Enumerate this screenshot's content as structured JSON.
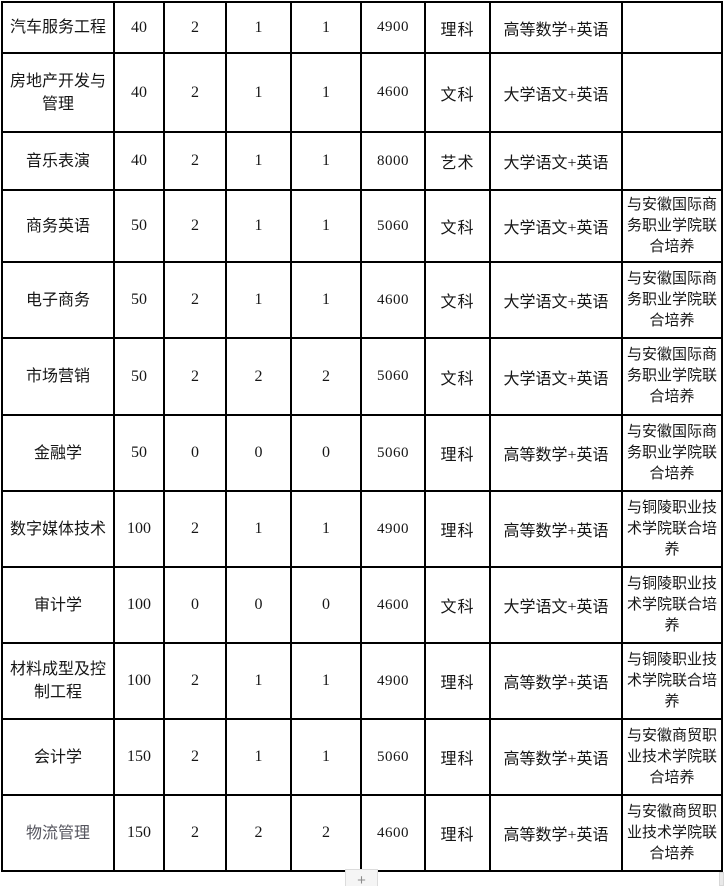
{
  "table": {
    "rows": [
      {
        "major": "汽车服务工程",
        "plan": "40",
        "n1": "2",
        "n2": "1",
        "n3": "1",
        "fee": "4900",
        "category": "理科",
        "subjects": "高等数学+英语",
        "note": ""
      },
      {
        "major": "房地产开发与管理",
        "plan": "40",
        "n1": "2",
        "n2": "1",
        "n3": "1",
        "fee": "4600",
        "category": "文科",
        "subjects": "大学语文+英语",
        "note": ""
      },
      {
        "major": "音乐表演",
        "plan": "40",
        "n1": "2",
        "n2": "1",
        "n3": "1",
        "fee": "8000",
        "category": "艺术",
        "subjects": "大学语文+英语",
        "note": ""
      },
      {
        "major": "商务英语",
        "plan": "50",
        "n1": "2",
        "n2": "1",
        "n3": "1",
        "fee": "5060",
        "category": "文科",
        "subjects": "大学语文+英语",
        "note": "与安徽国际商务职业学院联合培养"
      },
      {
        "major": "电子商务",
        "plan": "50",
        "n1": "2",
        "n2": "1",
        "n3": "1",
        "fee": "4600",
        "category": "文科",
        "subjects": "大学语文+英语",
        "note": "与安徽国际商务职业学院联合培养"
      },
      {
        "major": "市场营销",
        "plan": "50",
        "n1": "2",
        "n2": "2",
        "n3": "2",
        "fee": "5060",
        "category": "文科",
        "subjects": "大学语文+英语",
        "note": "与安徽国际商务职业学院联合培养"
      },
      {
        "major": "金融学",
        "plan": "50",
        "n1": "0",
        "n2": "0",
        "n3": "0",
        "fee": "5060",
        "category": "理科",
        "subjects": "高等数学+英语",
        "note": "与安徽国际商务职业学院联合培养"
      },
      {
        "major": "数字媒体技术",
        "plan": "100",
        "n1": "2",
        "n2": "1",
        "n3": "1",
        "fee": "4900",
        "category": "理科",
        "subjects": "高等数学+英语",
        "note": "与铜陵职业技术学院联合培养"
      },
      {
        "major": "审计学",
        "plan": "100",
        "n1": "0",
        "n2": "0",
        "n3": "0",
        "fee": "4600",
        "category": "文科",
        "subjects": "大学语文+英语",
        "note": "与铜陵职业技术学院联合培养"
      },
      {
        "major": "材料成型及控制工程",
        "plan": "100",
        "n1": "2",
        "n2": "1",
        "n3": "1",
        "fee": "4900",
        "category": "理科",
        "subjects": "高等数学+英语",
        "note": "与铜陵职业技术学院联合培养"
      },
      {
        "major": "会计学",
        "plan": "150",
        "n1": "2",
        "n2": "1",
        "n3": "1",
        "fee": "5060",
        "category": "理科",
        "subjects": "高等数学+英语",
        "note": "与安徽商贸职业技术学院联合培养"
      },
      {
        "major": "物流管理",
        "plan": "150",
        "n1": "2",
        "n2": "2",
        "n3": "2",
        "fee": "4600",
        "category": "理科",
        "subjects": "高等数学+英语",
        "note": "与安徽商贸职业技术学院联合培养"
      }
    ]
  },
  "controls": {
    "insert_row_button_label": "+"
  }
}
